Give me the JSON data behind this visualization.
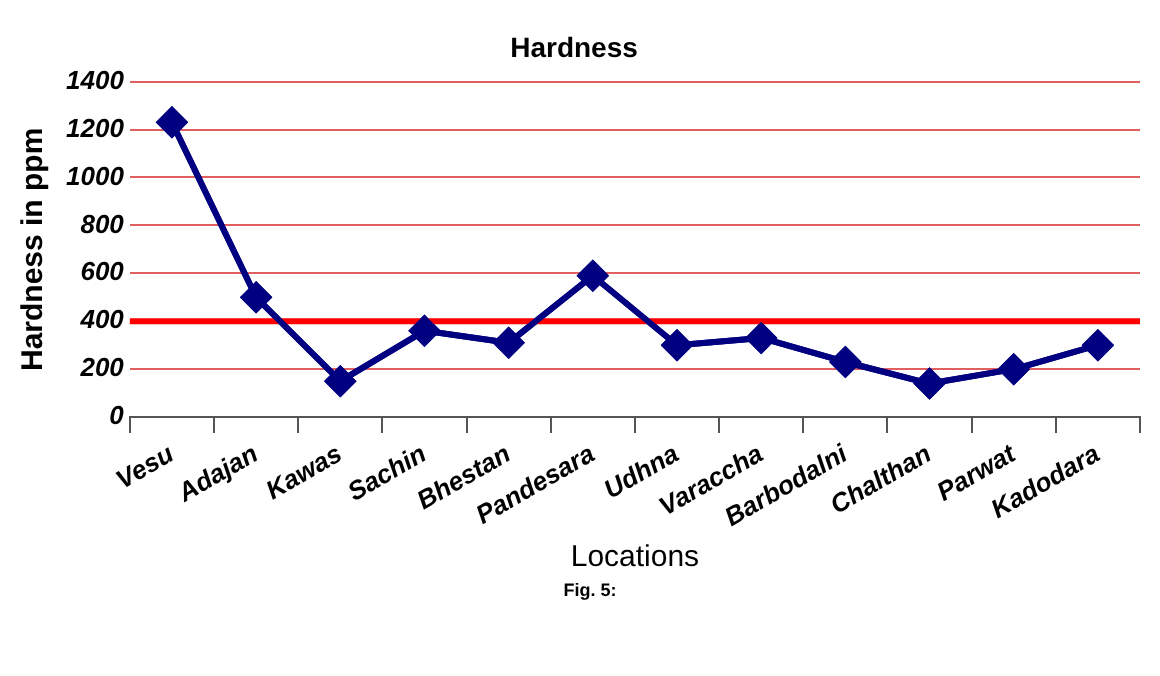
{
  "chart_data": {
    "type": "line",
    "title": "Hardness",
    "xlabel": "Locations",
    "ylabel": "Hardness in ppm",
    "categories": [
      "Vesu",
      "Adajan",
      "Kawas",
      "Sachin",
      "Bhestan",
      "Pandesara",
      "Udhna",
      "Varaccha",
      "Barbodalni",
      "Chalthan",
      "Parwat",
      "Kadodara"
    ],
    "series": [
      {
        "color": "#000080",
        "values": [
          1230,
          500,
          150,
          360,
          310,
          590,
          300,
          330,
          230,
          140,
          200,
          300
        ]
      }
    ],
    "ylim": [
      0,
      1400
    ],
    "yticks": [
      0,
      200,
      400,
      600,
      800,
      1000,
      1200,
      1400
    ],
    "grid": "y",
    "legend": false,
    "marker": "diamond",
    "line_style": "solid",
    "ref_lines": [
      {
        "axis": "y",
        "value": 400,
        "color": "#ff0000"
      }
    ],
    "annotations": [
      "Fig. 5:"
    ]
  }
}
